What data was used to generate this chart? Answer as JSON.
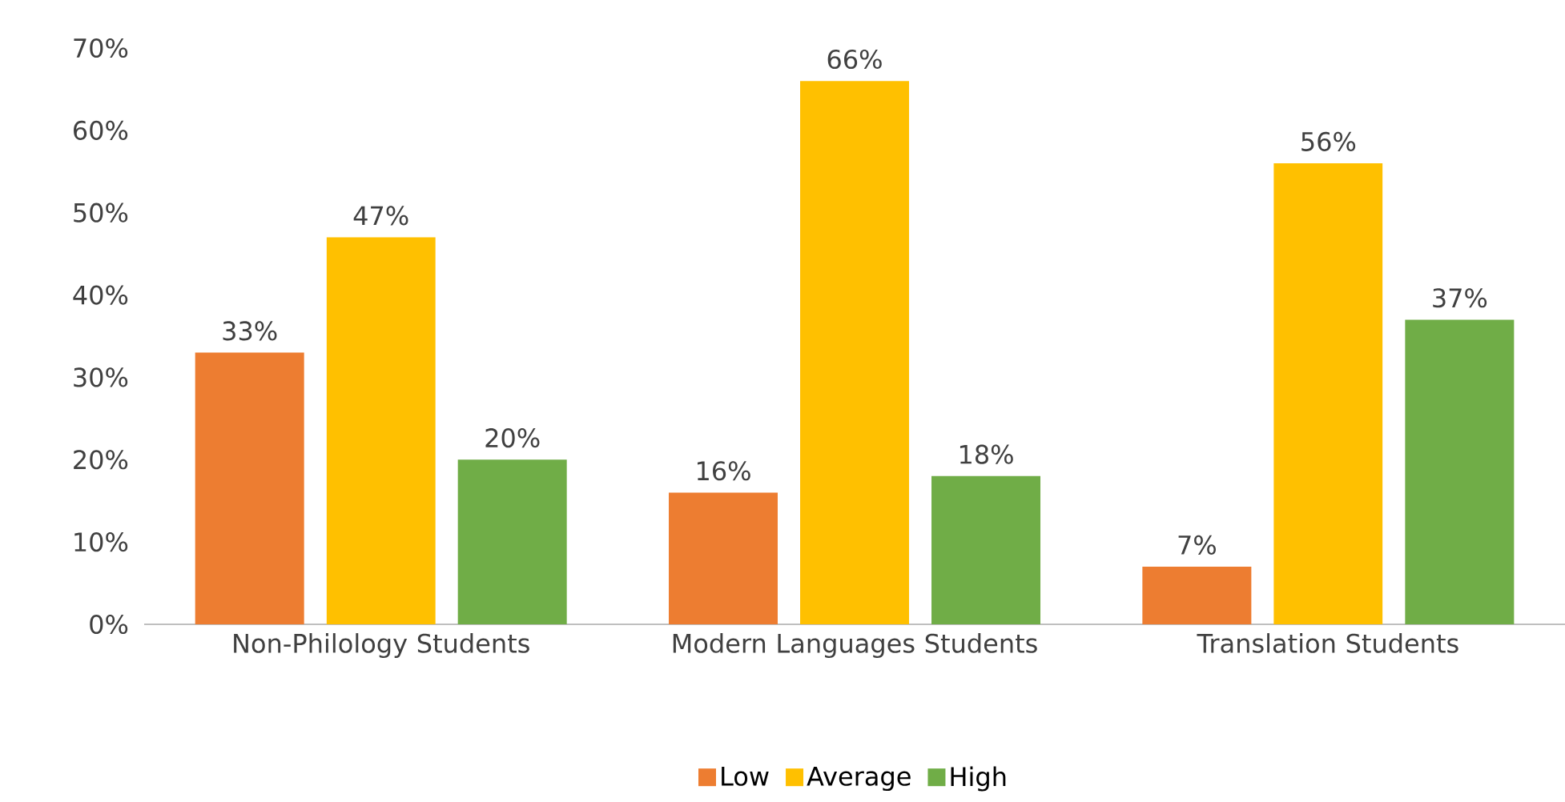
{
  "chart_data": {
    "type": "bar",
    "categories": [
      "Non-Philology Students",
      "Modern Languages Students",
      "Translation Students"
    ],
    "series": [
      {
        "name": "Low",
        "color": "#ed7d31",
        "values": [
          33,
          16,
          7
        ],
        "value_labels": [
          "33%",
          "16%",
          "7%"
        ]
      },
      {
        "name": "Average",
        "color": "#ffc000",
        "values": [
          47,
          66,
          56
        ],
        "value_labels": [
          "47%",
          "66%",
          "56%"
        ]
      },
      {
        "name": "High",
        "color": "#70ad47",
        "values": [
          20,
          18,
          37
        ],
        "value_labels": [
          "20%",
          "18%",
          "37%"
        ]
      }
    ],
    "ylim": [
      0,
      70
    ],
    "yticks": [
      {
        "value": 0,
        "label": "0%"
      },
      {
        "value": 10,
        "label": "10%"
      },
      {
        "value": 20,
        "label": "20%"
      },
      {
        "value": 30,
        "label": "30%"
      },
      {
        "value": 40,
        "label": "40%"
      },
      {
        "value": 50,
        "label": "50%"
      },
      {
        "value": 60,
        "label": "60%"
      },
      {
        "value": 70,
        "label": "70%"
      }
    ],
    "legend": "bottom"
  }
}
